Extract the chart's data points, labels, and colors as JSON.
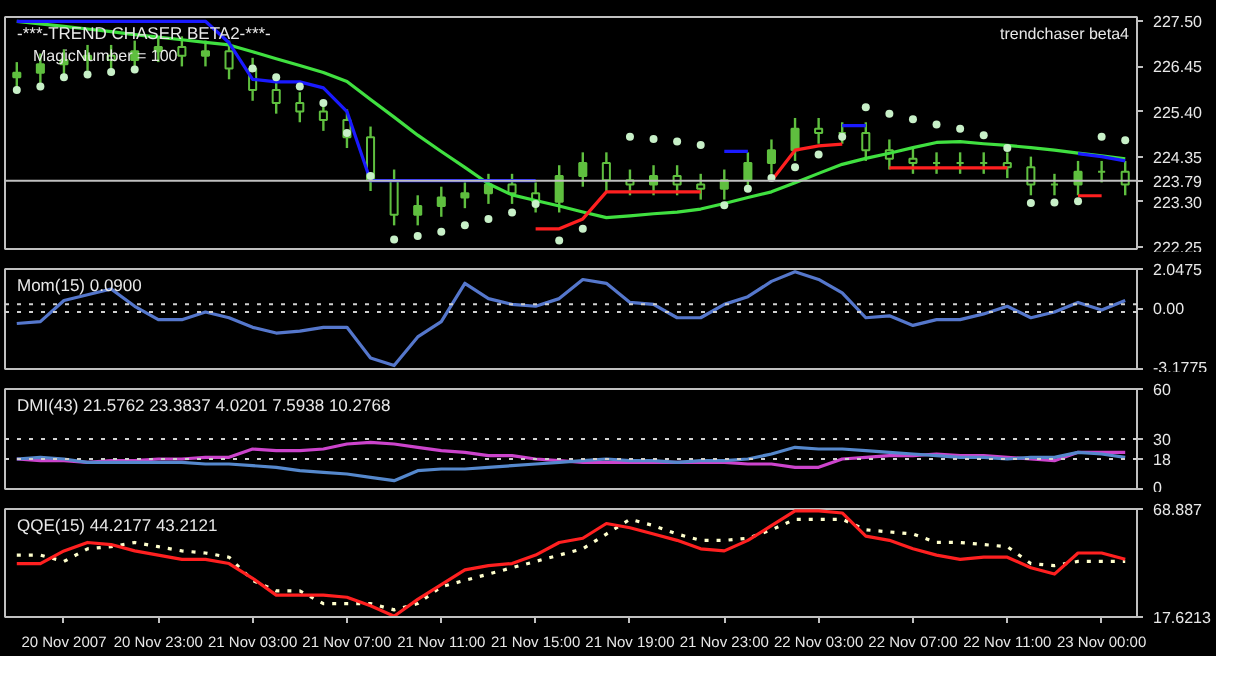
{
  "chart_data": [
    {
      "type": "candlestick",
      "title": "-***-TREND CHASER BETA2-***-",
      "subtitle": "MagicNumber = 100",
      "annotations": [
        "trendchaser beta4"
      ],
      "color": "#5fbf3f",
      "tick_labels": "y",
      "categories": [
        null,
        null,
        null,
        null,
        null,
        null,
        null,
        null,
        null,
        null,
        null,
        null,
        null,
        null,
        null,
        null,
        null,
        null,
        null,
        null,
        null,
        null,
        null,
        null,
        null,
        null,
        null,
        null,
        null,
        null,
        null,
        null,
        null,
        null,
        null,
        null,
        null,
        null,
        null,
        null,
        null,
        null,
        null,
        null,
        null,
        null,
        null,
        null
      ],
      "ohlc": [
        [
          226.2,
          226.55,
          225.95,
          226.3
        ],
        [
          226.3,
          226.75,
          226.05,
          226.5
        ],
        [
          226.5,
          226.85,
          226.25,
          226.6
        ],
        [
          226.6,
          226.95,
          226.35,
          226.7
        ],
        [
          226.7,
          226.95,
          226.35,
          226.6
        ],
        [
          226.6,
          227.05,
          226.35,
          226.8
        ],
        [
          226.8,
          227.15,
          226.55,
          226.9
        ],
        [
          226.9,
          227.15,
          226.45,
          226.7
        ],
        [
          226.7,
          227.05,
          226.45,
          226.8
        ],
        [
          226.8,
          227.05,
          226.15,
          226.4
        ],
        [
          226.4,
          226.65,
          225.65,
          225.9
        ],
        [
          225.9,
          226.15,
          225.35,
          225.6
        ],
        [
          225.6,
          225.85,
          225.15,
          225.4
        ],
        [
          225.4,
          225.65,
          224.95,
          225.2
        ],
        [
          225.2,
          225.45,
          224.55,
          224.8
        ],
        [
          224.8,
          225.05,
          223.55,
          223.8
        ],
        [
          223.8,
          224.05,
          222.75,
          223.0
        ],
        [
          223.0,
          223.45,
          222.75,
          223.2
        ],
        [
          223.2,
          223.65,
          222.95,
          223.4
        ],
        [
          223.4,
          223.75,
          223.15,
          223.5
        ],
        [
          223.5,
          223.95,
          223.25,
          223.7
        ],
        [
          223.7,
          223.95,
          223.25,
          223.5
        ],
        [
          223.5,
          223.75,
          223.05,
          223.3
        ],
        [
          223.3,
          224.15,
          223.05,
          223.9
        ],
        [
          223.9,
          224.45,
          223.65,
          224.2
        ],
        [
          224.2,
          224.45,
          223.55,
          223.8
        ],
        [
          223.8,
          224.05,
          223.45,
          223.7
        ],
        [
          223.7,
          224.15,
          223.45,
          223.9
        ],
        [
          223.9,
          224.15,
          223.45,
          223.7
        ],
        [
          223.7,
          223.95,
          223.35,
          223.6
        ],
        [
          223.6,
          224.05,
          223.35,
          223.8
        ],
        [
          223.8,
          224.45,
          223.55,
          224.2
        ],
        [
          224.2,
          224.75,
          223.95,
          224.5
        ],
        [
          224.5,
          225.25,
          224.25,
          225.0
        ],
        [
          225.0,
          225.25,
          224.65,
          224.9
        ],
        [
          224.9,
          225.15,
          224.65,
          224.9
        ],
        [
          224.9,
          225.15,
          224.25,
          224.5
        ],
        [
          224.5,
          224.75,
          224.05,
          224.3
        ],
        [
          224.3,
          224.55,
          223.95,
          224.2
        ],
        [
          224.2,
          224.45,
          223.95,
          224.2
        ],
        [
          224.2,
          224.45,
          223.95,
          224.2
        ],
        [
          224.2,
          224.45,
          223.95,
          224.2
        ],
        [
          224.2,
          224.45,
          223.85,
          224.1
        ],
        [
          224.1,
          224.35,
          223.45,
          223.7
        ],
        [
          223.7,
          223.95,
          223.45,
          223.7
        ],
        [
          223.7,
          224.25,
          223.45,
          224.0
        ],
        [
          224.0,
          224.25,
          223.75,
          224.0
        ],
        [
          224.0,
          224.25,
          223.45,
          223.7
        ]
      ],
      "series": [
        {
          "type": "line",
          "color": "#40e040",
          "values": [
            227.5,
            227.44,
            227.38,
            227.32,
            227.26,
            227.19,
            227.13,
            227.07,
            227.01,
            226.95,
            226.79,
            226.63,
            226.47,
            226.31,
            226.1,
            225.68,
            225.27,
            224.85,
            224.47,
            224.1,
            223.72,
            223.46,
            223.33,
            223.2,
            223.06,
            222.93,
            222.97,
            223.02,
            223.06,
            223.13,
            223.26,
            223.4,
            223.53,
            223.74,
            223.96,
            224.17,
            224.31,
            224.43,
            224.56,
            224.68,
            224.7,
            224.65,
            224.61,
            224.56,
            224.5,
            224.43,
            224.37,
            224.3
          ]
        },
        {
          "type": "line",
          "color": "#1a1aff",
          "values": [
            227.5,
            227.5,
            227.5,
            227.5,
            227.5,
            227.5,
            227.5,
            227.5,
            227.5,
            227.0,
            226.15,
            226.09,
            226.09,
            225.95,
            225.4,
            223.79,
            223.79,
            223.79,
            223.79,
            223.79,
            223.79,
            223.79,
            223.79,
            null,
            null,
            null,
            null,
            null,
            null,
            null,
            224.47,
            224.47,
            null,
            null,
            null,
            225.07,
            225.07,
            null,
            null,
            null,
            null,
            null,
            null,
            null,
            null,
            224.42,
            224.35,
            224.25
          ]
        },
        {
          "type": "line",
          "color": "#ff2020",
          "values": [
            null,
            null,
            null,
            null,
            null,
            null,
            null,
            null,
            null,
            null,
            null,
            null,
            null,
            null,
            null,
            null,
            null,
            null,
            null,
            null,
            null,
            null,
            222.67,
            222.67,
            222.9,
            223.53,
            223.53,
            223.53,
            223.53,
            223.53,
            null,
            null,
            223.79,
            224.5,
            224.6,
            224.64,
            null,
            224.09,
            224.09,
            224.09,
            224.09,
            224.09,
            224.09,
            null,
            null,
            223.44,
            223.44,
            null
          ]
        },
        {
          "type": "scatter",
          "color": "#c8f0c8",
          "marker": "circle",
          "values": [
            225.9,
            225.98,
            226.2,
            226.26,
            226.32,
            226.38,
            null,
            null,
            null,
            null,
            226.4,
            226.2,
            225.98,
            225.6,
            224.9,
            223.9,
            222.42,
            222.5,
            222.6,
            222.75,
            222.9,
            223.05,
            223.25,
            222.4,
            222.67,
            null,
            224.81,
            224.76,
            224.7,
            224.62,
            223.22,
            223.6,
            223.85,
            224.1,
            224.4,
            224.81,
            225.5,
            225.35,
            225.22,
            225.1,
            225.0,
            224.85,
            224.55,
            223.27,
            223.28,
            223.31,
            224.81,
            224.73
          ]
        }
      ],
      "ylim": [
        222.2,
        227.6
      ],
      "yticks": [
        {
          "value": 227.5,
          "label": "227.50"
        },
        226.45,
        {
          "value": 225.4,
          "label": "225.40"
        },
        224.35,
        {
          "value": 223.3,
          "label": "223.30"
        },
        222.25
      ],
      "ref_lines": [
        {
          "axis": "y",
          "value": 223.79,
          "label": "223.79",
          "color": "#c0c0c0"
        }
      ]
    },
    {
      "type": "line",
      "title": "Mom(15) 0.0900",
      "tick_labels": "y",
      "ylim": [
        -3.1775,
        2.0475
      ],
      "categories": [
        null,
        null,
        null,
        null,
        null,
        null,
        null,
        null,
        null,
        null,
        null,
        null,
        null,
        null,
        null,
        null,
        null,
        null,
        null,
        null,
        null,
        null,
        null,
        null,
        null,
        null,
        null,
        null,
        null,
        null,
        null,
        null,
        null,
        null,
        null,
        null,
        null,
        null,
        null,
        null,
        null,
        null,
        null,
        null,
        null,
        null,
        null,
        null
      ],
      "yticks": [
        2.0475,
        {
          "value": 0,
          "label": "0.00"
        },
        -3.1775
      ],
      "ref_lines": [
        {
          "axis": "y",
          "value": 0.2,
          "color": "#d0d0d0",
          "line_style": "dotted"
        },
        {
          "axis": "y",
          "value": -0.2,
          "color": "#d0d0d0",
          "line_style": "dotted"
        }
      ],
      "series": [
        {
          "color": "#5577cc",
          "values": [
            -0.8,
            -0.7,
            0.4,
            0.7,
            1.0,
            0.1,
            -0.6,
            -0.6,
            -0.2,
            -0.5,
            -1.0,
            -1.3,
            -1.2,
            -1.0,
            -1.0,
            -2.6,
            -3.0,
            -1.5,
            -0.7,
            1.3,
            0.5,
            0.2,
            0.1,
            0.5,
            1.5,
            1.3,
            0.3,
            0.2,
            -0.5,
            -0.5,
            0.2,
            0.6,
            1.4,
            1.9,
            1.5,
            0.8,
            -0.5,
            -0.4,
            -0.9,
            -0.6,
            -0.6,
            -0.3,
            0.1,
            -0.5,
            -0.2,
            0.3,
            -0.1,
            0.4
          ]
        }
      ]
    },
    {
      "type": "line",
      "title": "DMI(43) 21.5762 23.3837 4.0201 7.5938 10.2768",
      "tick_labels": "y",
      "ylim": [
        0,
        60
      ],
      "yticks": [
        60,
        30,
        18,
        0
      ],
      "categories": [
        null,
        null,
        null,
        null,
        null,
        null,
        null,
        null,
        null,
        null,
        null,
        null,
        null,
        null,
        null,
        null,
        null,
        null,
        null,
        null,
        null,
        null,
        null,
        null,
        null,
        null,
        null,
        null,
        null,
        null,
        null,
        null,
        null,
        null,
        null,
        null,
        null,
        null,
        null,
        null,
        null,
        null,
        null,
        null,
        null,
        null,
        null,
        null
      ],
      "ref_lines": [
        {
          "axis": "y",
          "value": 30,
          "color": "#d0d0d0",
          "line_style": "dotted"
        },
        {
          "axis": "y",
          "value": 18,
          "color": "#d0d0d0",
          "line_style": "dotted"
        }
      ],
      "series": [
        {
          "color": "#cc44cc",
          "values": [
            18,
            17,
            17,
            16,
            17,
            17,
            18,
            18,
            19,
            19,
            24,
            23,
            23,
            24,
            27,
            28,
            27,
            25,
            23,
            22,
            20,
            20,
            18,
            17,
            16,
            16,
            16,
            16,
            16,
            16,
            16,
            15,
            15,
            13,
            13,
            18,
            19,
            20,
            20,
            21,
            20,
            20,
            19,
            18,
            17,
            22,
            22,
            22
          ]
        },
        {
          "color": "#5588cc",
          "values": [
            18,
            19,
            18,
            16,
            16,
            16,
            16,
            16,
            15,
            15,
            14,
            13,
            11,
            10,
            9,
            7,
            5,
            11,
            12,
            12,
            13,
            14,
            15,
            16,
            17,
            18,
            17,
            17,
            16,
            17,
            17,
            18,
            21,
            25,
            24,
            24,
            23,
            22,
            21,
            20,
            19,
            19,
            18,
            19,
            19,
            22,
            21,
            19
          ]
        }
      ]
    },
    {
      "type": "line",
      "title": "QQE(15) 44.2177 43.2121",
      "ylim": [
        17.6213,
        68.887
      ],
      "yticks": [
        68.887,
        17.6213
      ],
      "categories": [
        null,
        null,
        "20 Nov 2007",
        null,
        null,
        null,
        "20 Nov 23:00",
        null,
        null,
        null,
        "21 Nov 03:00",
        null,
        null,
        null,
        "21 Nov 07:00",
        null,
        null,
        null,
        "21 Nov 11:00",
        null,
        null,
        null,
        "21 Nov 15:00",
        null,
        null,
        null,
        "21 Nov 19:00",
        null,
        null,
        null,
        "21 Nov 23:00",
        null,
        null,
        null,
        "22 Nov 03:00",
        null,
        null,
        null,
        "22 Nov 07:00",
        null,
        null,
        null,
        "22 Nov 11:00",
        null,
        null,
        null,
        "23 Nov 00:00",
        null
      ],
      "series": [
        {
          "color": "#ffffcc",
          "line_style": "dotted",
          "values": [
            47,
            47,
            44,
            50,
            51,
            53,
            51,
            49,
            48,
            46,
            35,
            30,
            30,
            24,
            24,
            24,
            21,
            24,
            32,
            35,
            38,
            41,
            44,
            47,
            50,
            57,
            64,
            61,
            57,
            54,
            54,
            55,
            59,
            64,
            64,
            64,
            59,
            58,
            57,
            53,
            53,
            52,
            51,
            43,
            42,
            44,
            44,
            44
          ]
        },
        {
          "color": "#ff2020",
          "values": [
            43,
            43,
            49,
            53,
            52,
            49,
            47,
            45,
            45,
            43,
            36,
            28,
            28,
            28,
            27,
            23,
            18,
            26,
            33,
            40,
            42,
            43,
            47,
            53,
            55,
            62,
            60,
            57,
            54,
            50,
            49,
            54,
            61,
            68,
            68,
            67,
            56,
            54,
            50,
            47,
            45,
            46,
            46,
            41,
            38,
            48,
            48,
            45
          ]
        }
      ]
    }
  ]
}
